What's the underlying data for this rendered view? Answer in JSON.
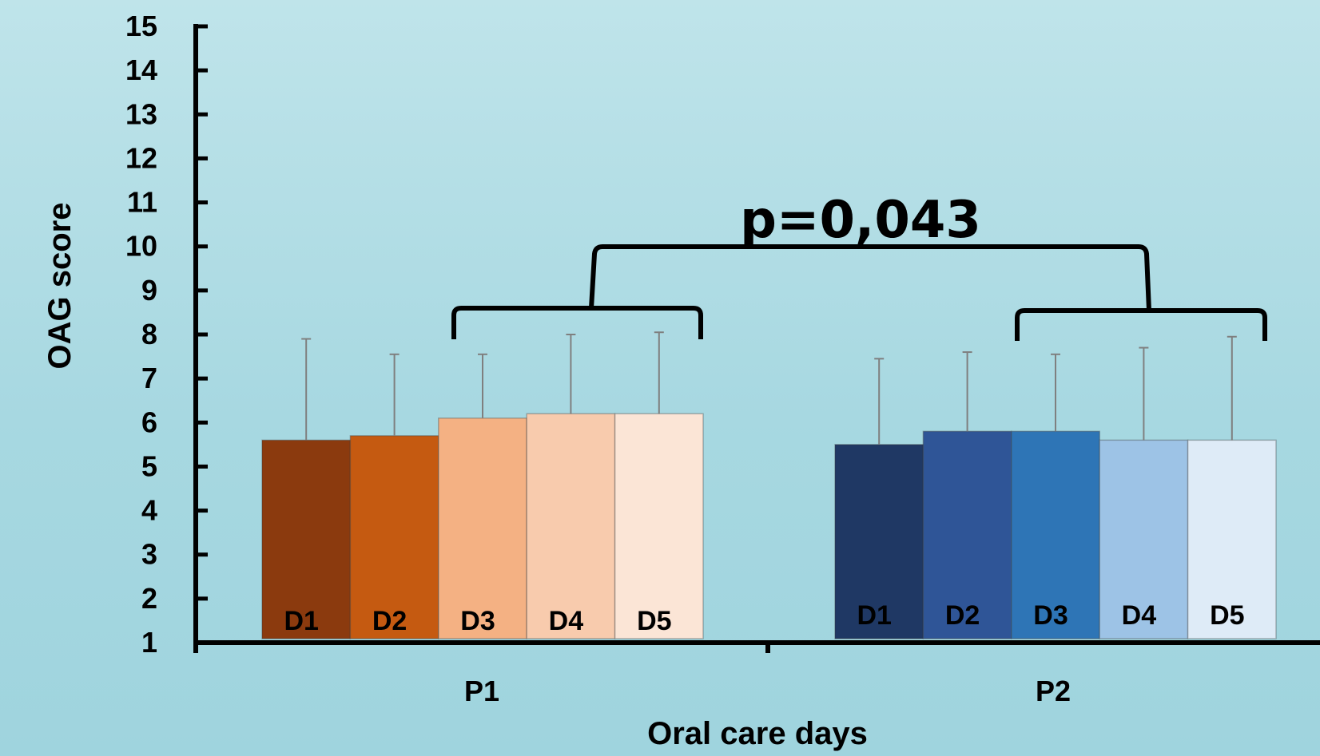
{
  "chart_data": {
    "type": "bar",
    "xlabel": "Oral care days",
    "ylabel": "OAG score",
    "ylim": [
      1,
      15
    ],
    "yticks": [
      "1",
      "2",
      "3",
      "4",
      "5",
      "6",
      "7",
      "8",
      "9",
      "10",
      "11",
      "12",
      "13",
      "14",
      "15"
    ],
    "grid": false,
    "groups": [
      {
        "name": "P1",
        "bars": [
          {
            "label": "D1",
            "value": 5.6,
            "error_top": 7.9,
            "color": "#8b3a0e",
            "text_color": "#000000"
          },
          {
            "label": "D2",
            "value": 5.7,
            "error_top": 7.55,
            "color": "#c55a11",
            "text_color": "#000000"
          },
          {
            "label": "D3",
            "value": 6.1,
            "error_top": 7.55,
            "color": "#f4b183",
            "text_color": "#000000"
          },
          {
            "label": "D4",
            "value": 6.2,
            "error_top": 8.0,
            "color": "#f8cbad",
            "text_color": "#000000"
          },
          {
            "label": "D5",
            "value": 6.2,
            "error_top": 8.05,
            "color": "#fbe5d6",
            "text_color": "#000000"
          }
        ]
      },
      {
        "name": "P2",
        "bars": [
          {
            "label": "D1",
            "value": 5.5,
            "error_top": 7.45,
            "color": "#1f3864",
            "text_color": "#000000"
          },
          {
            "label": "D2",
            "value": 5.8,
            "error_top": 7.6,
            "color": "#2f5597",
            "text_color": "#000000"
          },
          {
            "label": "D3",
            "value": 5.8,
            "error_top": 7.55,
            "color": "#2e75b6",
            "text_color": "#000000"
          },
          {
            "label": "D4",
            "value": 5.6,
            "error_top": 7.7,
            "color": "#9dc3e6",
            "text_color": "#000000"
          },
          {
            "label": "D5",
            "value": 5.6,
            "error_top": 7.95,
            "color": "#deebf7",
            "text_color": "#000000"
          }
        ]
      }
    ],
    "annotation": {
      "text": "p=0,043",
      "compares": [
        "P1 D3–D5",
        "P2 D3–D5"
      ]
    }
  },
  "colors": {
    "axis": "#000000",
    "error_bar": "#7f7f7f"
  }
}
